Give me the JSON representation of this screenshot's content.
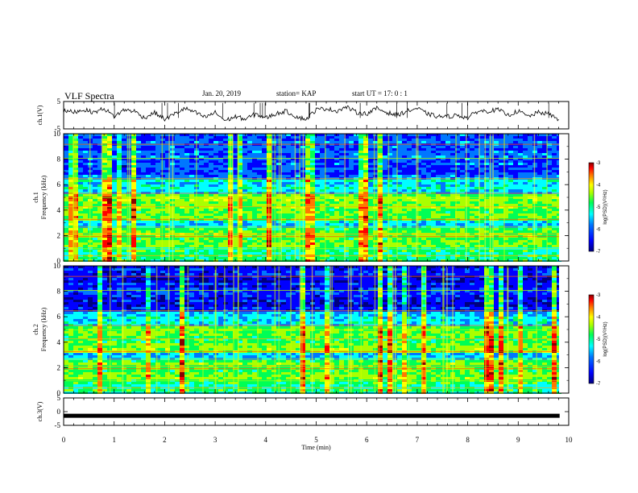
{
  "header": {
    "title": "VLF Spectra",
    "date": "Jan. 20, 2019",
    "station": "station= KAP",
    "start": "start  UT =   17: 0  : 1"
  },
  "chart_data": [
    {
      "type": "line",
      "name": "ch1-waveform",
      "ylabel": "ch.1(V)",
      "ylim": [
        -5,
        5
      ],
      "y_ticks": [
        "5",
        "-5"
      ],
      "xlim": [
        0,
        10
      ],
      "x": [
        0,
        0.2,
        0.4,
        0.6,
        0.8,
        1.0,
        1.2,
        1.4,
        1.6,
        1.8,
        2.0,
        2.2,
        2.4,
        2.6,
        2.8,
        3.0,
        3.2,
        3.4,
        3.6,
        3.8,
        4.0,
        4.2,
        4.4,
        4.6,
        4.8,
        5.0,
        5.2,
        5.4,
        5.6,
        5.8,
        6.0,
        6.2,
        6.4,
        6.6,
        6.8,
        7.0,
        7.2,
        7.4,
        7.6,
        7.8,
        8.0,
        8.2,
        8.4,
        8.6,
        8.8,
        9.0,
        9.2,
        9.4,
        9.6,
        9.8
      ],
      "y": [
        1.5,
        1.2,
        2.0,
        1.0,
        2.5,
        -0.5,
        2.0,
        1.5,
        -1.0,
        1.0,
        -1.5,
        0.5,
        2.5,
        1.0,
        -0.8,
        1.0,
        -2.0,
        -0.5,
        -1.5,
        0.5,
        -1.0,
        0.5,
        1.5,
        -0.5,
        -1.5,
        2.0,
        2.5,
        1.5,
        3.0,
        1.0,
        0.5,
        2.5,
        1.0,
        0.0,
        1.5,
        2.5,
        0.5,
        -0.5,
        -0.5,
        0.0,
        -1.0,
        1.5,
        1.5,
        2.0,
        0.0,
        1.5,
        -0.5,
        1.0,
        0.5,
        -1.5
      ]
    },
    {
      "type": "heatmap",
      "name": "ch1-spectrogram",
      "ylabel": "ch.1\nFrequency (kHz)",
      "ylim": [
        0,
        10
      ],
      "y_ticks": [
        "0",
        "2",
        "4",
        "6",
        "8",
        "10"
      ],
      "xlim": [
        0,
        10
      ],
      "colorbar": {
        "label": "log(PSD)(V²/Hz)",
        "range": [
          -7,
          -3
        ],
        "ticks": [
          "-3",
          "-4",
          "-5",
          "-6",
          "-7"
        ]
      }
    },
    {
      "type": "heatmap",
      "name": "ch2-spectrogram",
      "ylabel": "ch.2\nFrequency (kHz)",
      "ylim": [
        0,
        10
      ],
      "y_ticks": [
        "0",
        "2",
        "4",
        "6",
        "8",
        "10"
      ],
      "xlim": [
        0,
        10
      ],
      "colorbar": {
        "label": "log(PSD)(V²/Hz)",
        "range": [
          -7,
          -3
        ],
        "ticks": [
          "-3",
          "-4",
          "-5",
          "-6",
          "-7"
        ]
      }
    },
    {
      "type": "line",
      "name": "ch3-waveform",
      "ylabel": "ch.3(V)",
      "ylim": [
        -5,
        5
      ],
      "y_ticks": [
        "5",
        "0",
        "-5"
      ],
      "xlim": [
        0,
        10
      ],
      "x": [
        0,
        9.82
      ],
      "y": [
        -1.5,
        -1.5
      ]
    }
  ],
  "x_axis": {
    "label": "Time (min)",
    "ticks": [
      "0",
      "1",
      "2",
      "3",
      "4",
      "5",
      "6",
      "7",
      "8",
      "9",
      "10"
    ]
  },
  "colors": {
    "cmap": [
      "#00007f",
      "#0000ff",
      "#0077ff",
      "#00ffff",
      "#00ff55",
      "#aaff00",
      "#ffff00",
      "#ff7700",
      "#ff0000",
      "#880000"
    ]
  }
}
